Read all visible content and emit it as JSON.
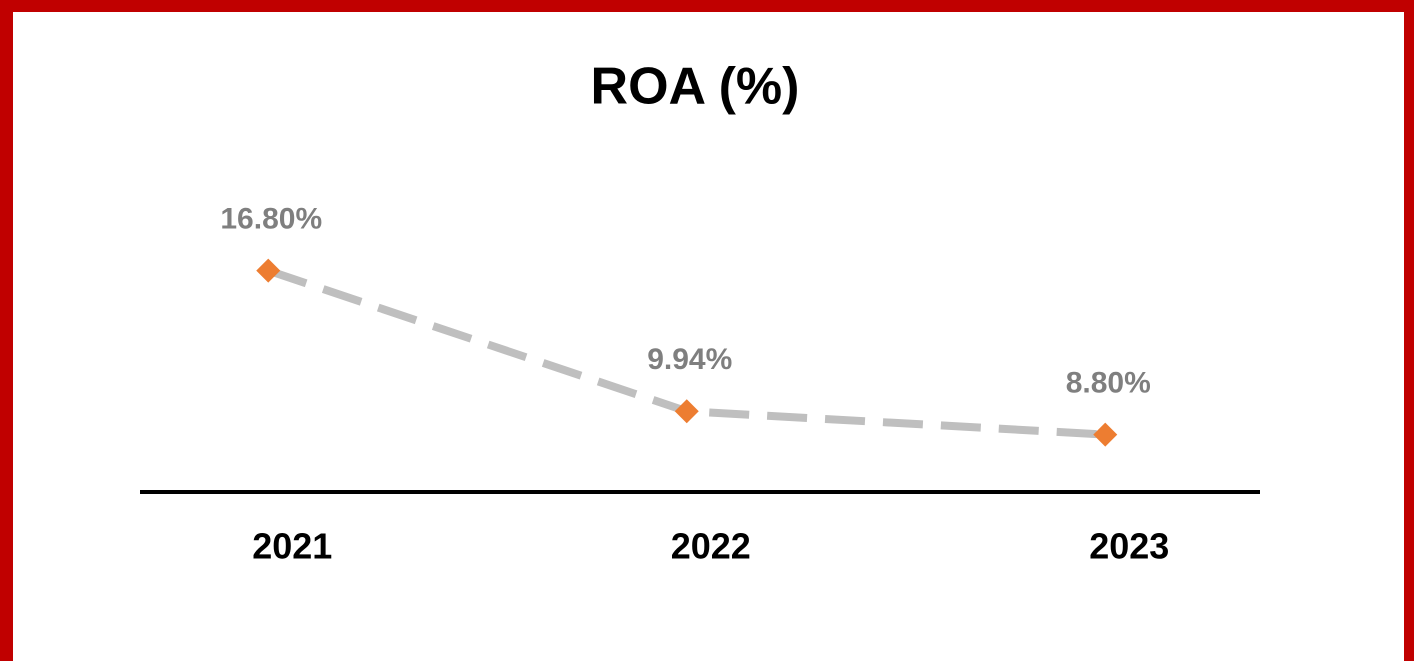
{
  "chart_data": {
    "type": "line",
    "title": "ROA (%)",
    "categories": [
      "2021",
      "2022",
      "2023"
    ],
    "values": [
      16.8,
      9.94,
      8.8
    ],
    "value_labels": [
      "16.80%",
      "9.94%",
      "8.80%"
    ],
    "color": "#bfbfbf",
    "marker_color": "#ed7d31",
    "ylim": [
      6,
      19
    ]
  }
}
